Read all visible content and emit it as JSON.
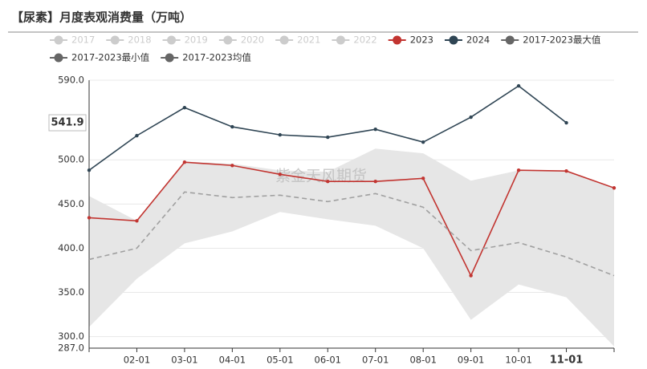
{
  "chart_data": {
    "type": "line",
    "title": "【尿素】月度表观消费量（万吨）",
    "watermark": "紫金天风期货",
    "categories": [
      null,
      "02-01",
      "03-01",
      "04-01",
      "05-01",
      "06-01",
      "07-01",
      "08-01",
      "09-01",
      "10-01",
      "11-01",
      null
    ],
    "highlight_category": 10,
    "hidden_series": [
      "2017",
      "2018",
      "2019",
      "2020",
      "2021",
      "2022"
    ],
    "hidden_color": "#cccccc",
    "series": [
      {
        "name": "2023",
        "color": "#c23531",
        "values": [
          434.5,
          431,
          497.3,
          493.6,
          483.6,
          475.5,
          475.5,
          479,
          369,
          488.2,
          487.3,
          468.2
        ]
      },
      {
        "name": "2024",
        "color": "#2f4554",
        "values": [
          488.2,
          527.3,
          559,
          537.3,
          528.2,
          525.5,
          534.5,
          520,
          548.2,
          583.6,
          541.9,
          null
        ]
      },
      {
        "name": "2017-2023最大值",
        "color": "#666666",
        "band": "upper",
        "values": [
          459,
          431,
          498.2,
          495.5,
          488,
          486.4,
          512.7,
          507.3,
          476.4,
          488,
          487,
          468
        ]
      },
      {
        "name": "2017-2023最小值",
        "color": "#666666",
        "band": "lower",
        "values": [
          310.9,
          365.5,
          405.5,
          419,
          441,
          432.7,
          425.5,
          400,
          319,
          359,
          344.5,
          289
        ]
      },
      {
        "name": "2017-2023均值",
        "color": "#666666",
        "dashed": true,
        "line_color": "#a0a0a0",
        "values": [
          387.3,
          400,
          463.6,
          457.3,
          460,
          452.7,
          461.8,
          446.4,
          397.3,
          406.4,
          390,
          369
        ]
      }
    ],
    "band_color": "#e6e6e6",
    "ylim": [
      287,
      590
    ],
    "yticks": [
      {
        "value": 287,
        "label": "287.0"
      },
      {
        "value": 300,
        "label": "300.0"
      },
      {
        "value": 350,
        "label": "350.0"
      },
      {
        "value": 400,
        "label": "400.0"
      },
      {
        "value": 450,
        "label": "450.0"
      },
      {
        "value": 500,
        "label": "500.0"
      },
      {
        "value": 590,
        "label": "590.0"
      }
    ],
    "y_pointer": 541.9,
    "grid": true
  }
}
